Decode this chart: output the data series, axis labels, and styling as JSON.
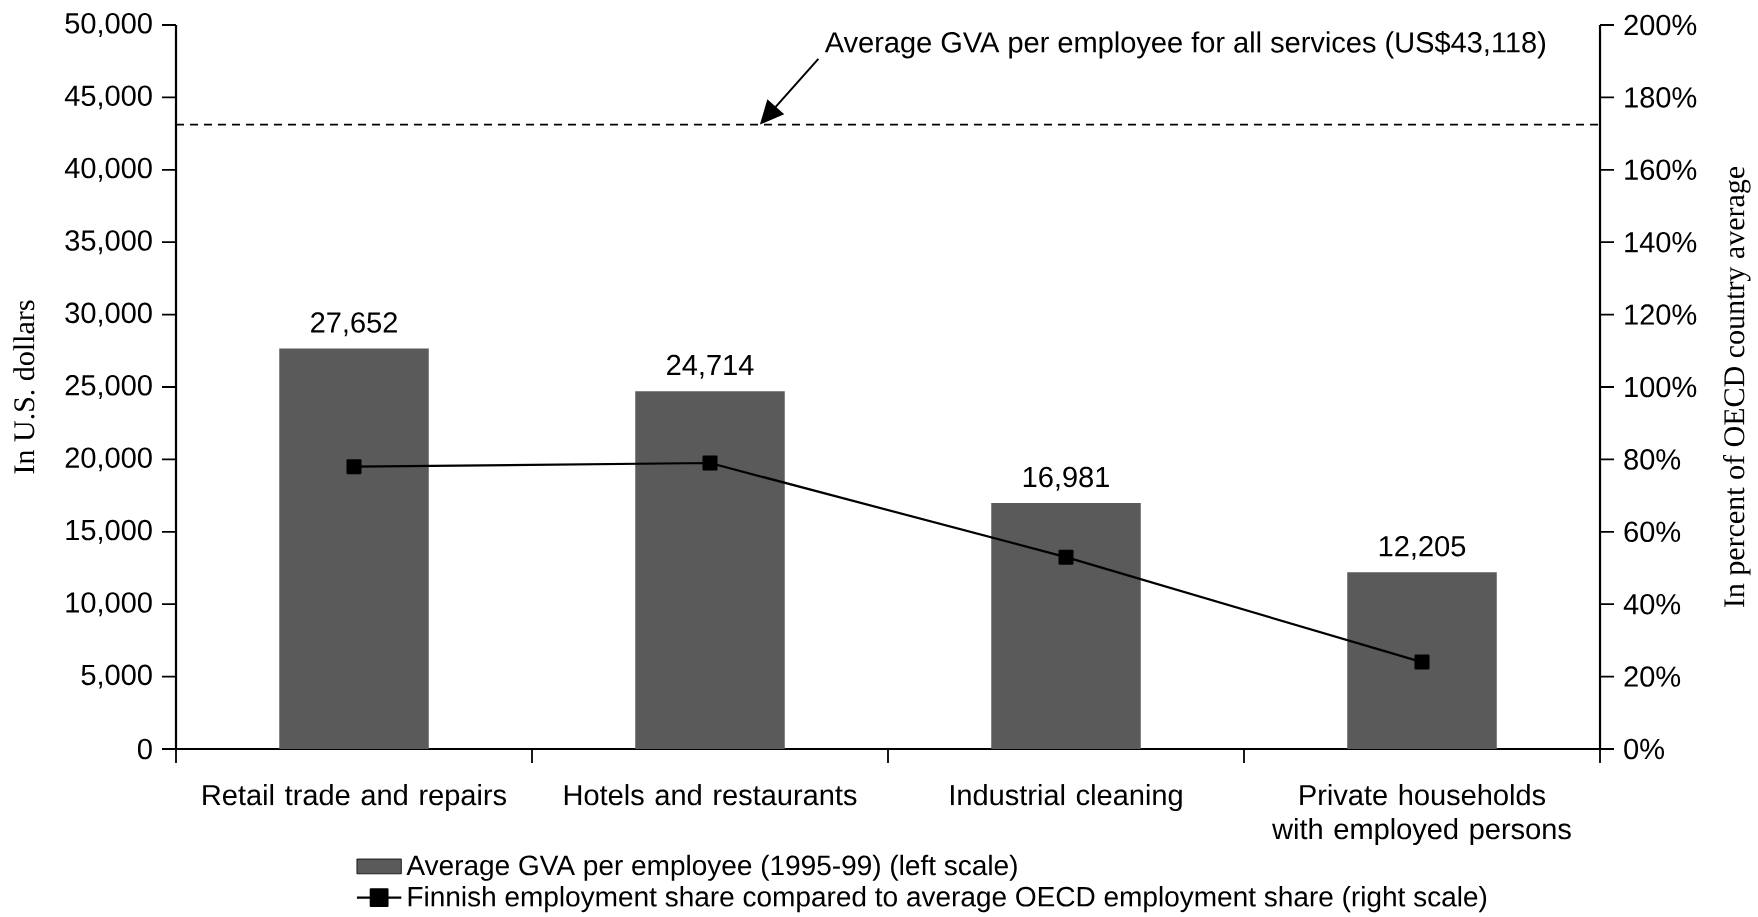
{
  "chart_data": {
    "type": "bar",
    "categories": [
      "Retail trade and repairs",
      "Hotels and restaurants",
      "Industrial cleaning",
      "Private households with employed persons"
    ],
    "series": [
      {
        "name": "Average GVA per employee (1995-99) (left scale)",
        "color": "#5a5a5a",
        "values": [
          27652,
          24714,
          16981,
          12205
        ],
        "value_labels": [
          "27,652",
          "24,714",
          "16,981",
          "12,205"
        ]
      },
      {
        "name": "Finnish employment share compared to average OECD employment share (right scale)",
        "type": "line",
        "axis": "y2",
        "color": "#000000",
        "values": [
          78,
          79,
          53,
          24
        ],
        "marker": "square",
        "line_style": "solid"
      }
    ],
    "ylabel": "In U.S. dollars",
    "y2label": "In percent of OECD country average",
    "ylim": [
      0,
      50000
    ],
    "yticks": [
      0,
      {
        "value": 5000,
        "label": "5,000"
      },
      {
        "value": 10000,
        "label": "10,000"
      },
      {
        "value": 15000,
        "label": "15,000"
      },
      {
        "value": 20000,
        "label": "20,000"
      },
      {
        "value": 25000,
        "label": "25,000"
      },
      {
        "value": 30000,
        "label": "30,000"
      },
      {
        "value": 35000,
        "label": "35,000"
      },
      {
        "value": 40000,
        "label": "40,000"
      },
      {
        "value": 45000,
        "label": "45,000"
      },
      {
        "value": 50000,
        "label": "50,000"
      }
    ],
    "y2lim": [
      0,
      200
    ],
    "y2ticks": [
      {
        "value": 0,
        "label": "0%"
      },
      {
        "value": 20,
        "label": "20%"
      },
      {
        "value": 40,
        "label": "40%"
      },
      {
        "value": 60,
        "label": "60%"
      },
      {
        "value": 80,
        "label": "80%"
      },
      {
        "value": 100,
        "label": "100%"
      },
      {
        "value": 120,
        "label": "120%"
      },
      {
        "value": 140,
        "label": "140%"
      },
      {
        "value": 160,
        "label": "160%"
      },
      {
        "value": 180,
        "label": "180%"
      },
      {
        "value": 200,
        "label": "200%"
      }
    ],
    "ref_lines": [
      {
        "axis": "y",
        "value": 43118,
        "label": "Average GVA per employee for all services (US$43,118)",
        "line_style": "dashed",
        "color": "#000000"
      }
    ],
    "legend": "bottom"
  }
}
